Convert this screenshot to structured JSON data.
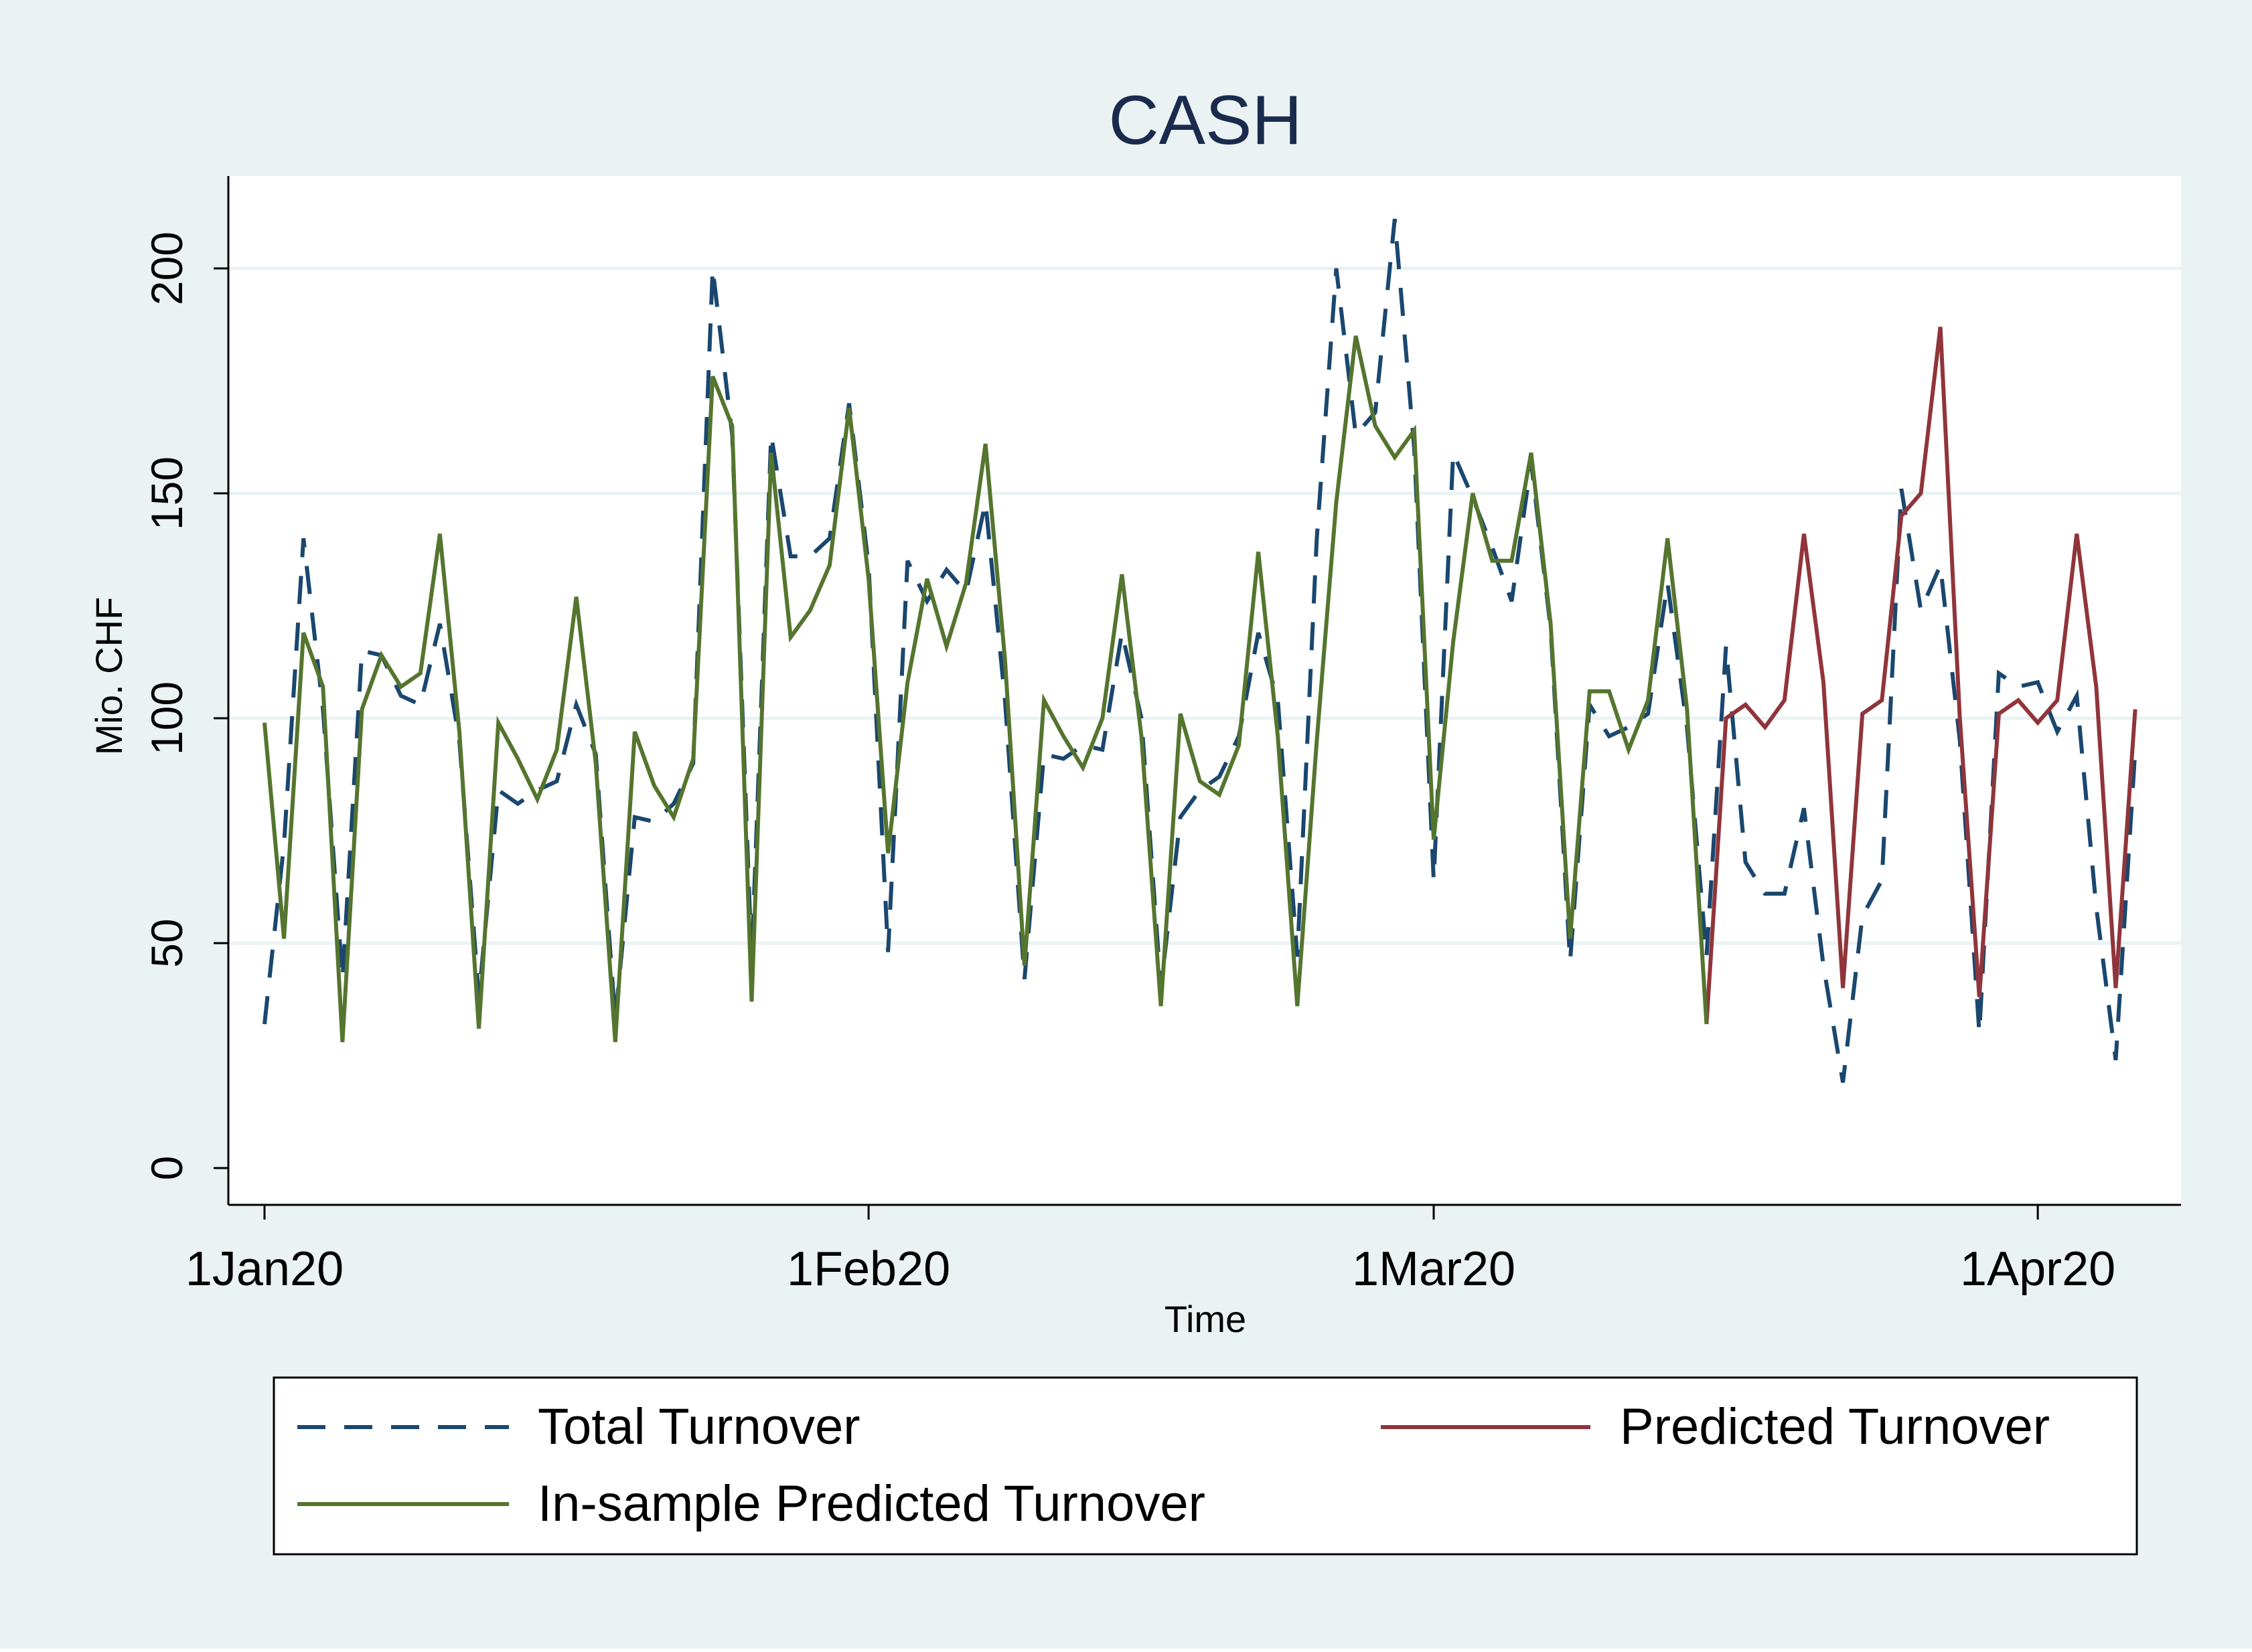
{
  "chart_data": {
    "type": "line",
    "title": "CASH",
    "xlabel": "Time",
    "ylabel": "Mio. CHF",
    "ylim": [
      0,
      200
    ],
    "yticks": [
      0,
      50,
      100,
      150,
      200
    ],
    "xticks": [
      {
        "label": "1Jan20",
        "date": "2020-01-01"
      },
      {
        "label": "1Feb20",
        "date": "2020-02-01"
      },
      {
        "label": "1Mar20",
        "date": "2020-03-01"
      },
      {
        "label": "1Apr20",
        "date": "2020-04-01"
      }
    ],
    "xlim": [
      "2020-01-01",
      "2020-04-06"
    ],
    "grid": true,
    "legend_position": "bottom",
    "colors": {
      "outer_background": "#eaf2f3",
      "plot_background": "#ffffff",
      "total": "#1a476f",
      "in_sample": "#55752f",
      "predicted": "#90353b",
      "title": "#1a2b4e"
    },
    "series": [
      {
        "name": "Total Turnover",
        "style": "dashed",
        "points": [
          [
            "2020-01-01",
            32
          ],
          [
            "2020-01-02",
            72
          ],
          [
            "2020-01-03",
            140
          ],
          [
            "2020-01-04",
            102
          ],
          [
            "2020-01-05",
            42
          ],
          [
            "2020-01-06",
            115
          ],
          [
            "2020-01-07",
            114
          ],
          [
            "2020-01-08",
            105
          ],
          [
            "2020-01-09",
            103
          ],
          [
            "2020-01-10",
            121
          ],
          [
            "2020-01-11",
            95
          ],
          [
            "2020-01-12",
            38
          ],
          [
            "2020-01-13",
            84
          ],
          [
            "2020-01-14",
            81
          ],
          [
            "2020-01-15",
            84
          ],
          [
            "2020-01-16",
            86
          ],
          [
            "2020-01-17",
            103
          ],
          [
            "2020-01-18",
            92
          ],
          [
            "2020-01-19",
            33
          ],
          [
            "2020-01-20",
            78
          ],
          [
            "2020-01-21",
            77
          ],
          [
            "2020-01-22",
            81
          ],
          [
            "2020-01-23",
            90
          ],
          [
            "2020-01-24",
            200
          ],
          [
            "2020-01-25",
            163
          ],
          [
            "2020-01-26",
            46
          ],
          [
            "2020-01-27",
            163
          ],
          [
            "2020-01-28",
            136
          ],
          [
            "2020-01-29",
            136
          ],
          [
            "2020-01-30",
            140
          ],
          [
            "2020-01-31",
            170
          ],
          [
            "2020-02-01",
            134
          ],
          [
            "2020-02-02",
            48
          ],
          [
            "2020-02-03",
            135
          ],
          [
            "2020-02-04",
            126
          ],
          [
            "2020-02-05",
            133
          ],
          [
            "2020-02-06",
            128
          ],
          [
            "2020-02-07",
            148
          ],
          [
            "2020-02-08",
            104
          ],
          [
            "2020-02-09",
            42
          ],
          [
            "2020-02-10",
            92
          ],
          [
            "2020-02-11",
            91
          ],
          [
            "2020-02-12",
            94
          ],
          [
            "2020-02-13",
            93
          ],
          [
            "2020-02-14",
            119
          ],
          [
            "2020-02-15",
            100
          ],
          [
            "2020-02-16",
            40
          ],
          [
            "2020-02-17",
            78
          ],
          [
            "2020-02-18",
            84
          ],
          [
            "2020-02-19",
            87
          ],
          [
            "2020-02-20",
            96
          ],
          [
            "2020-02-21",
            119
          ],
          [
            "2020-02-22",
            104
          ],
          [
            "2020-02-23",
            47
          ],
          [
            "2020-02-24",
            140
          ],
          [
            "2020-02-25",
            200
          ],
          [
            "2020-02-26",
            163
          ],
          [
            "2020-02-27",
            168
          ],
          [
            "2020-02-28",
            211
          ],
          [
            "2020-02-29",
            160
          ],
          [
            "2020-03-01",
            64
          ],
          [
            "2020-03-02",
            159
          ],
          [
            "2020-03-03",
            149
          ],
          [
            "2020-03-04",
            138
          ],
          [
            "2020-03-05",
            126
          ],
          [
            "2020-03-06",
            157
          ],
          [
            "2020-03-07",
            120
          ],
          [
            "2020-03-08",
            46
          ],
          [
            "2020-03-09",
            103
          ],
          [
            "2020-03-10",
            96
          ],
          [
            "2020-03-11",
            98
          ],
          [
            "2020-03-12",
            101
          ],
          [
            "2020-03-13",
            130
          ],
          [
            "2020-03-14",
            98
          ],
          [
            "2020-03-15",
            47
          ],
          [
            "2020-03-16",
            116
          ],
          [
            "2020-03-17",
            68
          ],
          [
            "2020-03-18",
            61
          ],
          [
            "2020-03-19",
            61
          ],
          [
            "2020-03-20",
            80
          ],
          [
            "2020-03-21",
            45
          ],
          [
            "2020-03-22",
            19
          ],
          [
            "2020-03-23",
            56
          ],
          [
            "2020-03-24",
            64
          ],
          [
            "2020-03-25",
            151
          ],
          [
            "2020-03-26",
            124
          ],
          [
            "2020-03-27",
            134
          ],
          [
            "2020-03-28",
            95
          ],
          [
            "2020-03-29",
            30
          ],
          [
            "2020-03-30",
            110
          ],
          [
            "2020-03-31",
            107
          ],
          [
            "2020-04-01",
            108
          ],
          [
            "2020-04-02",
            97
          ],
          [
            "2020-04-03",
            105
          ],
          [
            "2020-04-04",
            58
          ],
          [
            "2020-04-05",
            24
          ],
          [
            "2020-04-06",
            93
          ]
        ]
      },
      {
        "name": "Predicted Turnover",
        "style": "solid",
        "points": [
          [
            "2020-03-15",
            32
          ],
          [
            "2020-03-16",
            100
          ],
          [
            "2020-03-17",
            103
          ],
          [
            "2020-03-18",
            98
          ],
          [
            "2020-03-19",
            104
          ],
          [
            "2020-03-20",
            141
          ],
          [
            "2020-03-21",
            108
          ],
          [
            "2020-03-22",
            40
          ],
          [
            "2020-03-23",
            101
          ],
          [
            "2020-03-24",
            104
          ],
          [
            "2020-03-25",
            145
          ],
          [
            "2020-03-26",
            150
          ],
          [
            "2020-03-27",
            187
          ],
          [
            "2020-03-28",
            100
          ],
          [
            "2020-03-29",
            38
          ],
          [
            "2020-03-30",
            101
          ],
          [
            "2020-03-31",
            104
          ],
          [
            "2020-04-01",
            99
          ],
          [
            "2020-04-02",
            104
          ],
          [
            "2020-04-03",
            141
          ],
          [
            "2020-04-04",
            107
          ],
          [
            "2020-04-05",
            40
          ],
          [
            "2020-04-06",
            102
          ]
        ]
      },
      {
        "name": "In-sample Predicted Turnover",
        "style": "solid",
        "points": [
          [
            "2020-01-01",
            99
          ],
          [
            "2020-01-02",
            51
          ],
          [
            "2020-01-03",
            119
          ],
          [
            "2020-01-04",
            107
          ],
          [
            "2020-01-05",
            28
          ],
          [
            "2020-01-06",
            102
          ],
          [
            "2020-01-07",
            114
          ],
          [
            "2020-01-08",
            107
          ],
          [
            "2020-01-09",
            110
          ],
          [
            "2020-01-10",
            141
          ],
          [
            "2020-01-11",
            97
          ],
          [
            "2020-01-12",
            31
          ],
          [
            "2020-01-13",
            99
          ],
          [
            "2020-01-14",
            91
          ],
          [
            "2020-01-15",
            82
          ],
          [
            "2020-01-16",
            93
          ],
          [
            "2020-01-17",
            127
          ],
          [
            "2020-01-18",
            90
          ],
          [
            "2020-01-19",
            28
          ],
          [
            "2020-01-20",
            97
          ],
          [
            "2020-01-21",
            85
          ],
          [
            "2020-01-22",
            78
          ],
          [
            "2020-01-23",
            91
          ],
          [
            "2020-01-24",
            176
          ],
          [
            "2020-01-25",
            165
          ],
          [
            "2020-01-26",
            37
          ],
          [
            "2020-01-27",
            159
          ],
          [
            "2020-01-28",
            118
          ],
          [
            "2020-01-29",
            124
          ],
          [
            "2020-01-30",
            134
          ],
          [
            "2020-01-31",
            169
          ],
          [
            "2020-02-01",
            131
          ],
          [
            "2020-02-02",
            70
          ],
          [
            "2020-02-03",
            108
          ],
          [
            "2020-02-04",
            131
          ],
          [
            "2020-02-05",
            116
          ],
          [
            "2020-02-06",
            130
          ],
          [
            "2020-02-07",
            161
          ],
          [
            "2020-02-08",
            113
          ],
          [
            "2020-02-09",
            45
          ],
          [
            "2020-02-10",
            104
          ],
          [
            "2020-02-11",
            96
          ],
          [
            "2020-02-12",
            89
          ],
          [
            "2020-02-13",
            100
          ],
          [
            "2020-02-14",
            132
          ],
          [
            "2020-02-15",
            96
          ],
          [
            "2020-02-16",
            36
          ],
          [
            "2020-02-17",
            101
          ],
          [
            "2020-02-18",
            86
          ],
          [
            "2020-02-19",
            83
          ],
          [
            "2020-02-20",
            94
          ],
          [
            "2020-02-21",
            137
          ],
          [
            "2020-02-22",
            96
          ],
          [
            "2020-02-23",
            36
          ],
          [
            "2020-02-24",
            95
          ],
          [
            "2020-02-25",
            148
          ],
          [
            "2020-02-26",
            185
          ],
          [
            "2020-02-27",
            165
          ],
          [
            "2020-02-28",
            158
          ],
          [
            "2020-02-29",
            164
          ],
          [
            "2020-03-01",
            73
          ],
          [
            "2020-03-02",
            117
          ],
          [
            "2020-03-03",
            150
          ],
          [
            "2020-03-04",
            135
          ],
          [
            "2020-03-05",
            135
          ],
          [
            "2020-03-06",
            159
          ],
          [
            "2020-03-07",
            121
          ],
          [
            "2020-03-08",
            51
          ],
          [
            "2020-03-09",
            106
          ],
          [
            "2020-03-10",
            106
          ],
          [
            "2020-03-11",
            93
          ],
          [
            "2020-03-12",
            104
          ],
          [
            "2020-03-13",
            140
          ],
          [
            "2020-03-14",
            102
          ],
          [
            "2020-03-15",
            32
          ]
        ]
      }
    ]
  }
}
